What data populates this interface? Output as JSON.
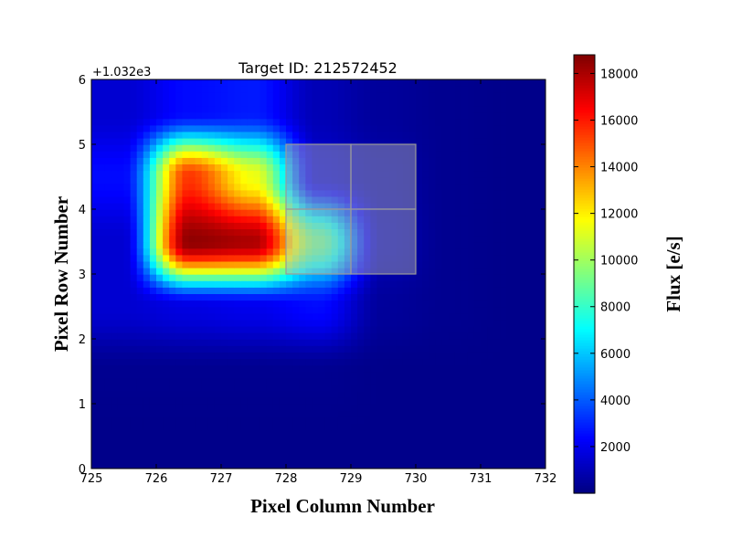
{
  "chart_data": {
    "type": "heatmap",
    "title": "Target ID: 212572452",
    "xlabel": "Pixel Column Number",
    "ylabel": "Pixel Row Number",
    "y_offset_label": "+1.032e3",
    "x_ticks": [
      "725",
      "726",
      "727",
      "728",
      "729",
      "730",
      "731",
      "732"
    ],
    "y_ticks": [
      "0",
      "1",
      "2",
      "3",
      "4",
      "5",
      "6"
    ],
    "xlim": [
      725,
      732
    ],
    "ylim": [
      1032,
      1038
    ],
    "colormap": "jet",
    "interpolation": "bicubic",
    "colorbar": {
      "label": "Flux [e/s]",
      "range": [
        0,
        18800
      ],
      "ticks": [
        "2000",
        "4000",
        "6000",
        "8000",
        "10000",
        "12000",
        "14000",
        "16000",
        "18000"
      ]
    },
    "rows_y": [
      1032.5,
      1033.5,
      1034.5,
      1035.5,
      1036.5,
      1037.5
    ],
    "cols_x": [
      725.5,
      726.5,
      727.5,
      728.5,
      729.5,
      730.5,
      731.5
    ],
    "flux_by_row": [
      [
        200,
        200,
        200,
        200,
        200,
        200,
        200
      ],
      [
        300,
        300,
        300,
        300,
        200,
        200,
        200
      ],
      [
        1500,
        1800,
        2000,
        2500,
        500,
        300,
        200
      ],
      [
        1500,
        18500,
        18000,
        9000,
        1000,
        300,
        200
      ],
      [
        2500,
        15500,
        11500,
        1500,
        800,
        300,
        200
      ],
      [
        1500,
        2500,
        2800,
        1000,
        500,
        300,
        200
      ]
    ],
    "aperture": {
      "pixels": [
        [
          728,
          1035
        ],
        [
          729,
          1035
        ],
        [
          728,
          1036
        ],
        [
          729,
          1036
        ]
      ],
      "overlay_color": "#b4b4b4"
    }
  }
}
